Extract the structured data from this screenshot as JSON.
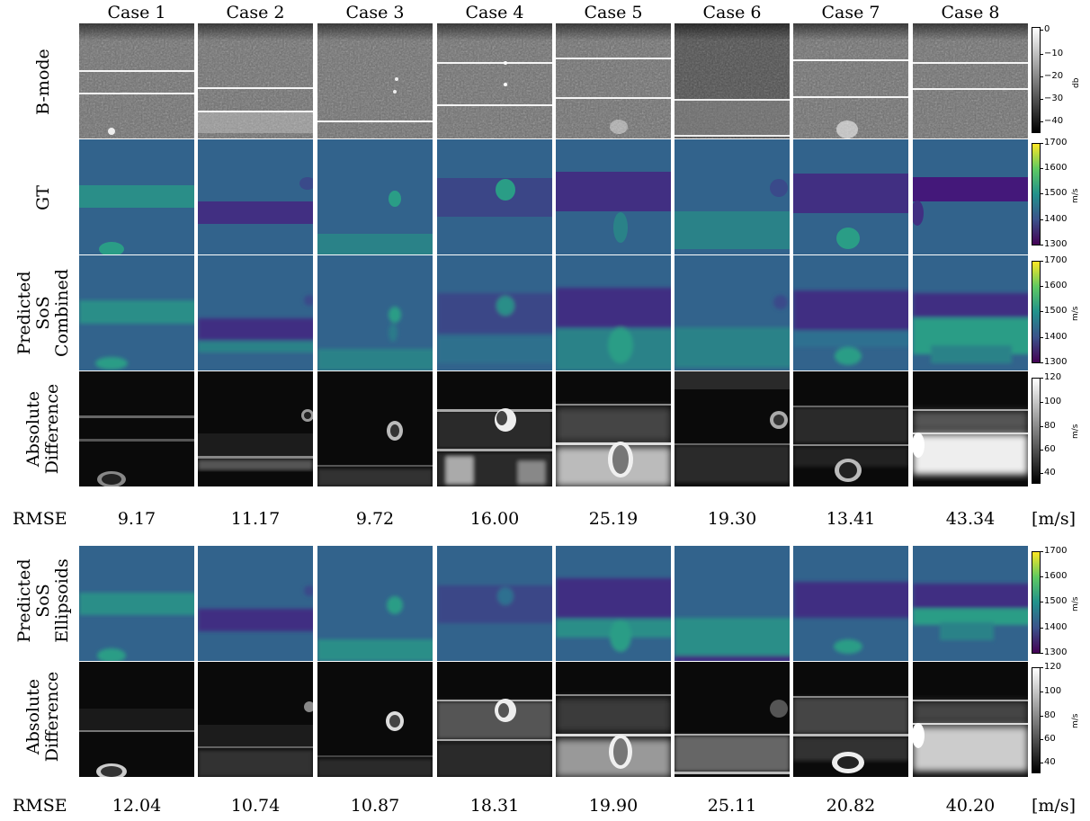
{
  "columns": [
    "Case 1",
    "Case 2",
    "Case 3",
    "Case 4",
    "Case 5",
    "Case 6",
    "Case 7",
    "Case 8"
  ],
  "row_labels": {
    "bmode": [
      "B-mode"
    ],
    "gt": [
      "GT"
    ],
    "pred_combined": [
      "Predicted",
      "SoS",
      "Combined"
    ],
    "diff_combined": [
      "Absolute",
      "Difference"
    ],
    "pred_ellipsoids": [
      "Predicted",
      "SoS",
      "Ellipsoids"
    ],
    "diff_ellipsoids": [
      "Absolute",
      "Difference"
    ]
  },
  "rmse": {
    "label": "RMSE",
    "units": "[m/s]",
    "combined": [
      "9.17",
      "11.17",
      "9.72",
      "16.00",
      "25.19",
      "19.30",
      "13.41",
      "43.34"
    ],
    "ellipsoids": [
      "12.04",
      "10.74",
      "10.87",
      "18.31",
      "19.90",
      "25.11",
      "20.82",
      "40.20"
    ]
  },
  "colorbars": {
    "bmode": {
      "unit": "db",
      "ticks": [
        "0",
        "−10",
        "−20",
        "−30",
        "−40"
      ]
    },
    "sos": {
      "unit": "m/s",
      "ticks": [
        "1700",
        "1600",
        "1500",
        "1400",
        "1300"
      ]
    },
    "diff": {
      "unit": "m/s",
      "ticks": [
        "120",
        "100",
        "80",
        "60",
        "40"
      ]
    }
  },
  "colors": {
    "background_sos": "#32638c",
    "low_sos": "#412f82",
    "high_sos": "#2a9d86",
    "bright_diff": "#f0f0f0",
    "dark_diff": "#0a0a0a"
  }
}
